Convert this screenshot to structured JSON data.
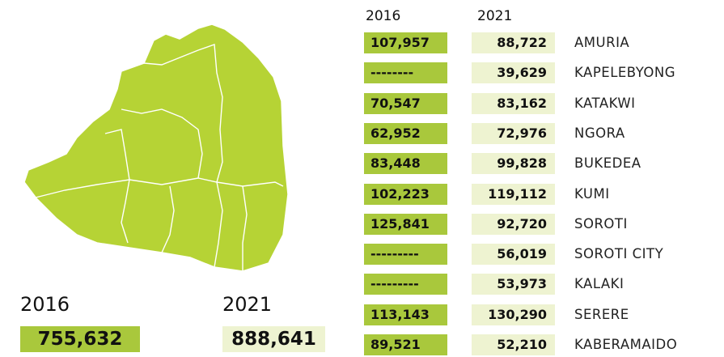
{
  "table": {
    "headers": [
      "2016",
      "2021"
    ],
    "rows": [
      [
        "107,957",
        "88,722",
        "AMURIA"
      ],
      [
        "--------",
        "39,629",
        "KAPELEBYONG"
      ],
      [
        "70,547",
        "83,162",
        "KATAKWI"
      ],
      [
        "62,952",
        "72,976",
        "NGORA"
      ],
      [
        "83,448",
        "99,828",
        "BUKEDEA"
      ],
      [
        "102,223",
        "119,112",
        "KUMI"
      ],
      [
        "125,841",
        "92,720",
        "SOROTI"
      ],
      [
        "---------",
        "56,019",
        "SOROTI CITY"
      ],
      [
        "---------",
        "53,973",
        "KALAKI"
      ],
      [
        "113,143",
        "130,290",
        "SERERE"
      ],
      [
        "89,521",
        "52,210",
        "KABERAMAIDO"
      ]
    ]
  },
  "totals": [
    {
      "year": "2016",
      "value": "755,632"
    },
    {
      "year": "2021",
      "value": "888,641"
    }
  ]
}
